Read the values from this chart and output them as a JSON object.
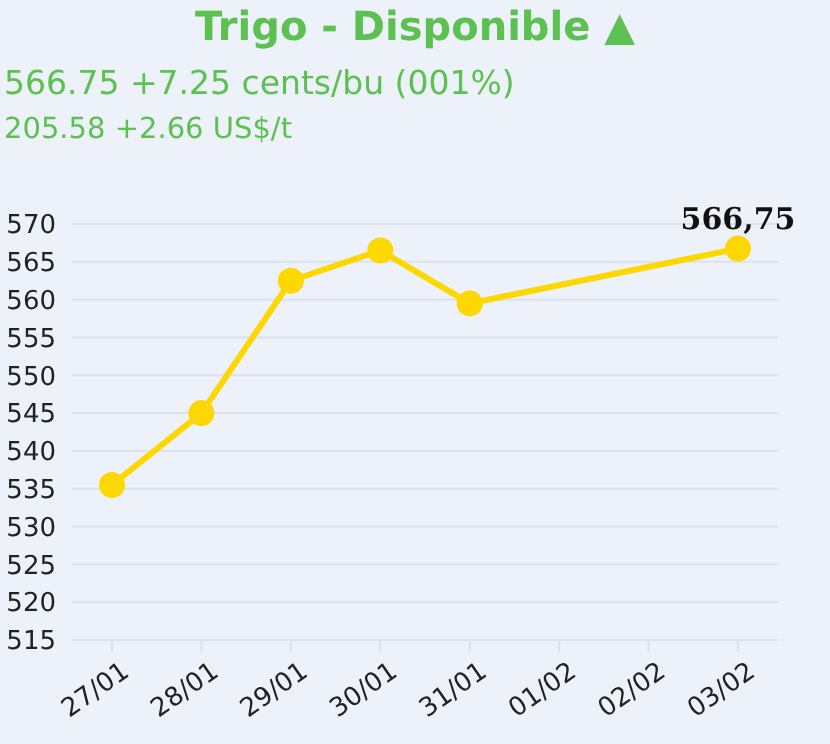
{
  "chart_data": {
    "type": "line",
    "title": "Trigo - Disponible ▲",
    "subtitle": "566.75 +7.25 cents/bu (001%)",
    "annotations": [
      "205.58 +2.66 US$/t"
    ],
    "categories": [
      "27/01",
      "28/01",
      "29/01",
      "30/01",
      "31/01",
      "01/02",
      "02/02",
      "03/02"
    ],
    "series": [
      {
        "color": "#fdd700",
        "values": [
          535.5,
          545,
          562.5,
          566.5,
          559.5,
          null,
          null,
          566.75
        ],
        "value_labels": [
          null,
          null,
          null,
          null,
          null,
          null,
          null,
          "566,75"
        ]
      }
    ],
    "ylim": [
      515,
      570
    ],
    "yticks": [
      515,
      520,
      525,
      530,
      535,
      540,
      545,
      550,
      555,
      560,
      565,
      570
    ],
    "grid": "y",
    "marker": "circle",
    "line_style": "solid",
    "legend": false
  }
}
